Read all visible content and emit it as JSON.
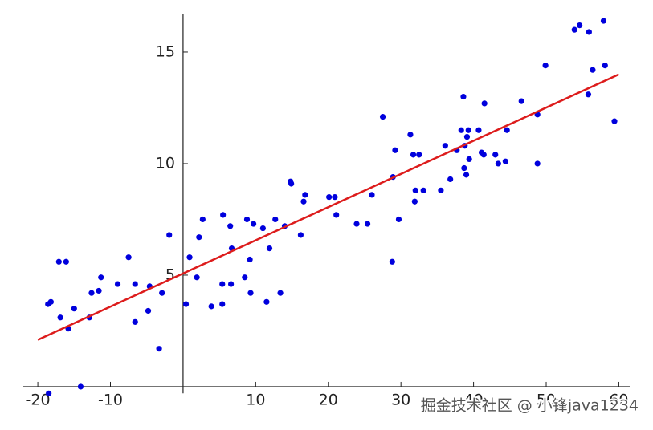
{
  "chart_data": {
    "type": "scatter",
    "xlim": [
      -22,
      61.5
    ],
    "ylim": [
      -0.3,
      16.7
    ],
    "xticks": [
      -20,
      -10,
      10,
      20,
      30,
      40,
      50,
      60
    ],
    "yticks": [
      5,
      10,
      15
    ],
    "series": [
      {
        "color": "#0000dd",
        "mode": "markers",
        "x": [
          -18.6,
          -18.2,
          -17.1,
          -16.1,
          -16.9,
          -15.8,
          -15.0,
          -12.9,
          -12.6,
          -11.6,
          -11.3,
          -9.0,
          -7.5,
          -6.6,
          -6.6,
          -4.6,
          -4.8,
          -3.3,
          -2.9,
          -1.9,
          0.9,
          0.4,
          1.9,
          2.7,
          2.2,
          3.9,
          5.4,
          5.5,
          5.4,
          6.5,
          6.6,
          6.7,
          8.5,
          8.8,
          9.2,
          9.3,
          9.7,
          11.0,
          11.5,
          11.9,
          12.7,
          13.4,
          14.0,
          14.8,
          14.9,
          16.2,
          16.6,
          16.8,
          20.1,
          20.9,
          21.1,
          23.9,
          25.4,
          26.0,
          27.5,
          28.8,
          28.9,
          29.2,
          29.7,
          31.3,
          31.7,
          32.5,
          31.9,
          32.0,
          33.1,
          35.5,
          36.1,
          36.8,
          37.7,
          38.3,
          38.6,
          38.7,
          38.8,
          39.0,
          39.1,
          39.3,
          39.4,
          40.7,
          41.1,
          41.4,
          41.5,
          43.0,
          43.4,
          44.4,
          44.6,
          46.6,
          48.8,
          48.8,
          49.9,
          53.9,
          54.6,
          55.8,
          55.9,
          56.4,
          57.9,
          58.1,
          59.4,
          -18.5,
          -14.1
        ],
        "values": [
          3.7,
          3.8,
          5.6,
          5.6,
          3.1,
          2.6,
          3.5,
          3.1,
          4.2,
          4.3,
          4.9,
          4.6,
          5.8,
          4.6,
          2.9,
          4.5,
          3.4,
          1.7,
          4.2,
          6.8,
          5.8,
          3.7,
          4.9,
          7.5,
          6.7,
          3.6,
          3.7,
          7.7,
          4.6,
          7.2,
          4.6,
          6.2,
          4.9,
          7.5,
          5.7,
          4.2,
          7.3,
          7.1,
          3.8,
          6.2,
          7.5,
          4.2,
          7.2,
          9.2,
          9.1,
          6.8,
          8.3,
          8.6,
          8.5,
          8.5,
          7.7,
          7.3,
          7.3,
          8.6,
          12.1,
          5.6,
          9.4,
          10.6,
          7.5,
          11.3,
          10.4,
          10.4,
          8.3,
          8.8,
          8.8,
          8.8,
          10.8,
          9.3,
          10.6,
          11.5,
          13.0,
          9.8,
          10.8,
          9.5,
          11.2,
          11.5,
          10.2,
          11.5,
          10.5,
          10.4,
          12.7,
          10.4,
          10.0,
          10.1,
          11.5,
          12.8,
          12.2,
          10.0,
          14.4,
          16.0,
          16.2,
          13.1,
          15.9,
          14.2,
          16.4,
          14.4,
          11.9,
          -0.3,
          0.0
        ]
      },
      {
        "color": "#dd1c1c",
        "mode": "lines",
        "x": [
          -20,
          60
        ],
        "values": [
          2.1,
          14.0
        ]
      }
    ]
  },
  "watermark": "掘金技术社区 @ 小锋java1234"
}
